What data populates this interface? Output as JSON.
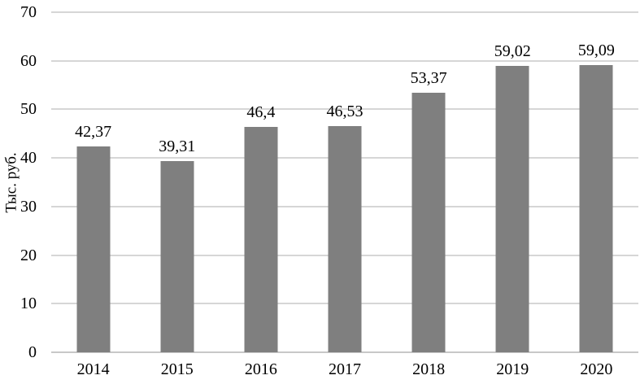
{
  "chart_data": {
    "type": "bar",
    "categories": [
      "2014",
      "2015",
      "2016",
      "2017",
      "2018",
      "2019",
      "2020"
    ],
    "values": [
      42.37,
      39.31,
      46.4,
      46.53,
      53.37,
      59.02,
      59.09
    ],
    "value_labels": [
      "42,37",
      "39,31",
      "46,4",
      "46,53",
      "53,37",
      "59,02",
      "59,09"
    ],
    "title": "",
    "xlabel": "",
    "ylabel": "Тыс. руб.",
    "ylim": [
      0,
      70
    ],
    "yticks": [
      0,
      10,
      20,
      30,
      40,
      50,
      60,
      70
    ],
    "grid": true,
    "legend_position": "none",
    "bar_color": "#7f7f7f",
    "gridline_color": "#d6d6d6",
    "axis_line_color": "#c8c8c8",
    "text_color": "#000000",
    "background_color": "#ffffff"
  }
}
